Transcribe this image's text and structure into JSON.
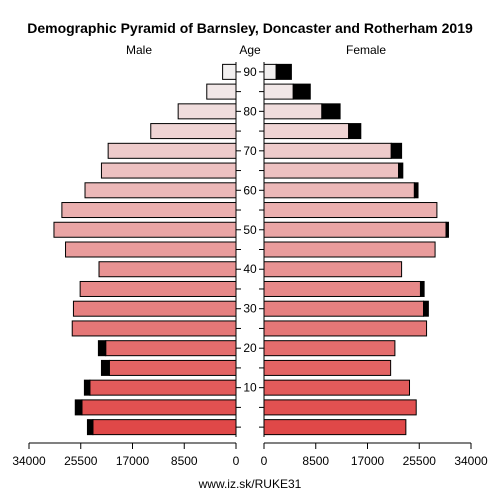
{
  "chart_data": {
    "type": "bar",
    "title": "Demographic Pyramid of Barnsley, Doncaster and Rotherham 2019",
    "left_label": "Male",
    "center_label": "Age",
    "right_label": "Female",
    "footer": "www.iz.sk/RUKE31",
    "xlim": [
      0,
      34000
    ],
    "x_tick_values": [
      0,
      8500,
      17000,
      25500,
      34000
    ],
    "x_tick_labels_left": [
      "0",
      "8500",
      "17000",
      "25500",
      "34000"
    ],
    "x_tick_labels_right": [
      "0",
      "8500",
      "17000",
      "25500",
      "34000"
    ],
    "age_ticks": [
      10,
      20,
      30,
      40,
      50,
      60,
      70,
      80,
      90
    ],
    "age_groups": [
      0,
      5,
      10,
      15,
      20,
      25,
      30,
      35,
      40,
      45,
      50,
      55,
      60,
      65,
      70,
      75,
      80,
      85,
      90
    ],
    "male_base": [
      23500,
      25300,
      24000,
      20800,
      21400,
      26900,
      26700,
      25600,
      22500,
      28000,
      29900,
      28600,
      24800,
      22100,
      21000,
      14000,
      9500,
      4800,
      2200
    ],
    "male_extra": [
      900,
      1100,
      900,
      1300,
      1200,
      0,
      0,
      0,
      0,
      0,
      0,
      0,
      0,
      0,
      0,
      0,
      0,
      0,
      0
    ],
    "female_base": [
      23300,
      25000,
      23900,
      20800,
      21500,
      26700,
      26200,
      25700,
      22600,
      28100,
      29900,
      28400,
      24700,
      22100,
      20900,
      13900,
      9500,
      4800,
      2000
    ],
    "female_extra": [
      0,
      0,
      0,
      0,
      0,
      0,
      800,
      600,
      0,
      0,
      400,
      0,
      600,
      700,
      1700,
      2000,
      3000,
      2800,
      2500
    ],
    "colors": {
      "young": "#e04848",
      "old": "#f2f0f0",
      "extra": "#000000",
      "border": "#000000"
    }
  }
}
